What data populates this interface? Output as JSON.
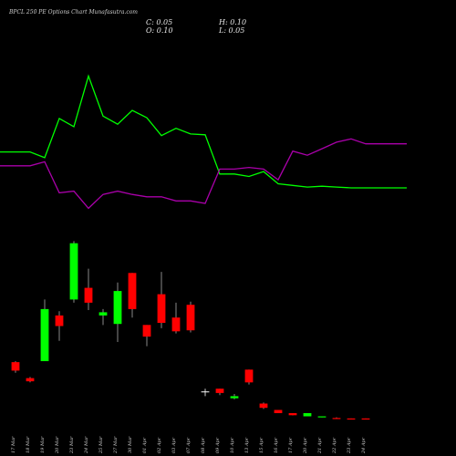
{
  "title": "BPCL 250 PE Options Chart Munafasutra.com",
  "ohlc": {
    "c": "C: 0.05",
    "h": "H: 0.10",
    "o": "O: 0.10",
    "l": "L: 0.05"
  },
  "colors": {
    "up": "#00ff00",
    "down": "#ff0000",
    "doji": "#ffffff",
    "green_line": "#00ff00",
    "purple_line": "#aa00aa",
    "background": "#000000"
  },
  "chart_data": {
    "type": "candlestick",
    "categories": [
      "17 Mar",
      "18 Mar",
      "19 Mar",
      "20 Mar",
      "23 Mar",
      "24 Mar",
      "25 Mar",
      "27 Mar",
      "30 Mar",
      "01 Apr",
      "02 Apr",
      "03 Apr",
      "07 Apr",
      "08 Apr",
      "09 Apr",
      "10 Apr",
      "13 Apr",
      "15 Apr",
      "16 Apr",
      "17 Apr",
      "20 Apr",
      "21 Apr",
      "22 Apr",
      "23 Apr",
      "24 Apr"
    ],
    "candles": [
      {
        "o": 5.4,
        "h": 5.5,
        "l": 4.4,
        "c": 4.6
      },
      {
        "o": 3.9,
        "h": 4.0,
        "l": 3.5,
        "c": 3.6
      },
      {
        "o": 5.5,
        "h": 11.3,
        "l": 5.5,
        "c": 10.4
      },
      {
        "o": 9.8,
        "h": 10.2,
        "l": 7.4,
        "c": 8.8
      },
      {
        "o": 11.3,
        "h": 16.8,
        "l": 11.0,
        "c": 16.6
      },
      {
        "o": 12.4,
        "h": 14.2,
        "l": 10.3,
        "c": 11.0
      },
      {
        "o": 9.8,
        "h": 10.4,
        "l": 8.9,
        "c": 10.1
      },
      {
        "o": 9.0,
        "h": 12.9,
        "l": 7.3,
        "c": 12.1
      },
      {
        "o": 13.8,
        "h": 13.8,
        "l": 9.6,
        "c": 10.4
      },
      {
        "o": 8.9,
        "h": 8.9,
        "l": 6.9,
        "c": 7.8
      },
      {
        "o": 11.8,
        "h": 13.9,
        "l": 8.6,
        "c": 9.1
      },
      {
        "o": 9.6,
        "h": 11.0,
        "l": 8.1,
        "c": 8.3
      },
      {
        "o": 10.8,
        "h": 11.1,
        "l": 8.2,
        "c": 8.4
      },
      {
        "o": 2.6,
        "h": 2.9,
        "l": 2.2,
        "c": 2.6
      },
      {
        "o": 2.9,
        "h": 2.9,
        "l": 2.3,
        "c": 2.5
      },
      {
        "o": 2.0,
        "h": 2.4,
        "l": 1.9,
        "c": 2.2
      },
      {
        "o": 4.7,
        "h": 4.7,
        "l": 3.3,
        "c": 3.5
      },
      {
        "o": 1.5,
        "h": 1.6,
        "l": 1.0,
        "c": 1.1
      },
      {
        "o": 0.9,
        "h": 0.9,
        "l": 0.6,
        "c": 0.6
      },
      {
        "o": 0.6,
        "h": 0.6,
        "l": 0.4,
        "c": 0.4
      },
      {
        "o": 0.3,
        "h": 0.6,
        "l": 0.3,
        "c": 0.6
      },
      {
        "o": 0.2,
        "h": 0.3,
        "l": 0.2,
        "c": 0.3
      },
      {
        "o": 0.15,
        "h": 0.2,
        "l": 0.05,
        "c": 0.05
      },
      {
        "o": 0.1,
        "h": 0.1,
        "l": 0.05,
        "c": 0.05
      },
      {
        "o": 0.1,
        "h": 0.1,
        "l": 0.05,
        "c": 0.05
      }
    ],
    "ylim": [
      0,
      17
    ],
    "indicator_series": [
      {
        "values": [
          6.2,
          6.2,
          5.5,
          10.3,
          9.3,
          15.5,
          10.6,
          9.6,
          11.3,
          10.4,
          8.2,
          9.1,
          8.4,
          8.3,
          3.5,
          3.5,
          3.2,
          3.8,
          2.3,
          2.1,
          1.9,
          2.0,
          1.9,
          1.8,
          1.8
        ]
      },
      {
        "values": [
          4.5,
          4.5,
          5.0,
          1.2,
          1.4,
          -0.7,
          1.0,
          1.4,
          1.0,
          0.7,
          0.7,
          0.2,
          0.2,
          -0.1,
          4.1,
          4.1,
          4.3,
          4.1,
          2.8,
          6.3,
          5.8,
          6.6,
          7.4,
          7.8,
          7.2
        ]
      }
    ],
    "indicator_ylim": [
      -2,
      17
    ],
    "grid": false
  }
}
